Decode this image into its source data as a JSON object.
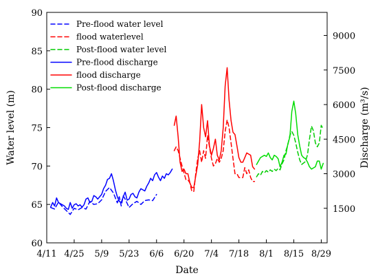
{
  "chart_data": {
    "type": "line",
    "xlabel": "Date",
    "ylabel_left": "Water level  (m)",
    "ylabel_right": "Discharge (m³/s)",
    "x_tick_labels": [
      "4/11",
      "4/25",
      "5/9",
      "5/23",
      "6/6",
      "6/20",
      "7/4",
      "7/18",
      "8/1",
      "8/15",
      "8/29"
    ],
    "x_tick_days": [
      0,
      14,
      28,
      42,
      56,
      70,
      84,
      98,
      112,
      126,
      140
    ],
    "x_range_days": [
      0,
      143
    ],
    "ylim_left": [
      60,
      90
    ],
    "yticks_left": [
      60,
      65,
      70,
      75,
      80,
      85,
      90
    ],
    "ylim_right": [
      0,
      10000
    ],
    "yticks_right": [
      1500,
      3000,
      4500,
      6000,
      7500,
      9000
    ],
    "legend_position": "top-left",
    "series": [
      {
        "name": "Pre-flood water level",
        "axis": "left",
        "style": "dashed",
        "color": "#0000ff",
        "x": [
          2,
          4,
          6,
          8,
          10,
          12,
          14,
          16,
          18,
          20,
          22,
          24,
          26,
          28,
          30,
          32,
          34,
          36,
          37,
          38,
          39,
          40,
          42,
          44,
          46,
          48,
          50,
          52,
          54,
          56
        ],
        "y": [
          64.6,
          64.4,
          65.3,
          64.7,
          64.2,
          63.7,
          64.5,
          64.3,
          64.6,
          64.4,
          65.4,
          65.0,
          65.1,
          65.6,
          66.7,
          67.2,
          66.5,
          65.2,
          66.0,
          64.8,
          66.1,
          65.7,
          64.6,
          65.1,
          65.4,
          65.0,
          65.5,
          65.6,
          65.5,
          66.3
        ]
      },
      {
        "name": "flood waterlevel",
        "axis": "left",
        "style": "dashed",
        "color": "#ff0000",
        "x": [
          65,
          66,
          67,
          69,
          71,
          72,
          73,
          74,
          75,
          76,
          77,
          78,
          79,
          80,
          81,
          82,
          83,
          84,
          85,
          86,
          87,
          88,
          89,
          90,
          91,
          92,
          93,
          94,
          95,
          96,
          97,
          98,
          99,
          100,
          101,
          102,
          103,
          104,
          105,
          106
        ],
        "y": [
          72,
          72.5,
          72,
          70,
          68.2,
          68.2,
          67.8,
          66.7,
          66.7,
          69,
          71,
          72,
          70.5,
          72,
          71,
          74,
          72.5,
          71,
          70,
          70.3,
          71,
          70.5,
          71,
          72,
          74.5,
          76,
          75,
          73,
          71,
          69,
          69,
          68.5,
          68.5,
          68.5,
          69.8,
          69,
          69.5,
          68.5,
          68,
          68
        ]
      },
      {
        "name": "Post-flood water level",
        "axis": "left",
        "style": "dashed",
        "color": "#00cc00",
        "x": [
          107,
          108,
          109,
          110,
          111,
          112,
          113,
          114,
          115,
          116,
          117,
          118,
          119,
          120,
          121,
          122,
          123,
          124,
          125,
          126,
          127,
          128,
          129,
          130,
          131,
          132,
          133,
          134,
          135,
          136,
          137,
          138,
          139,
          140,
          141
        ],
        "y": [
          68.6,
          69.0,
          68.8,
          69.3,
          69.1,
          69.4,
          69.2,
          69.5,
          69.3,
          69.6,
          69.4,
          69.7,
          69.5,
          70.3,
          70.8,
          72.0,
          72.8,
          74.0,
          74.5,
          74.0,
          73.0,
          71.8,
          70.8,
          70.2,
          70.4,
          70.6,
          71.5,
          73.5,
          75.2,
          74.6,
          73.0,
          72.5,
          73.0,
          75.3,
          74.8
        ]
      },
      {
        "name": "Pre-flood discharge",
        "axis": "right",
        "style": "solid",
        "color": "#0000ff",
        "x": [
          2,
          3,
          4,
          5,
          6,
          7,
          8,
          9,
          10,
          11,
          12,
          13,
          14,
          15,
          16,
          17,
          18,
          19,
          20,
          21,
          22,
          23,
          24,
          25,
          26,
          27,
          28,
          29,
          30,
          31,
          32,
          33,
          34,
          35,
          36,
          37,
          38,
          39,
          40,
          41,
          42,
          43,
          44,
          45,
          46,
          47,
          48,
          49,
          50,
          51,
          52,
          53,
          54,
          55,
          56,
          57,
          58,
          59,
          60,
          61,
          62,
          63,
          64
        ],
        "y": [
          1550,
          1750,
          1600,
          1950,
          1750,
          1700,
          1650,
          1600,
          1500,
          1450,
          1750,
          1500,
          1650,
          1700,
          1600,
          1650,
          1550,
          1650,
          1900,
          1950,
          1750,
          1800,
          2050,
          2000,
          1900,
          2000,
          2100,
          2350,
          2500,
          2750,
          2800,
          3000,
          2700,
          2300,
          2000,
          1800,
          1750,
          2000,
          2200,
          1850,
          1900,
          2100,
          2150,
          2000,
          1950,
          2200,
          2350,
          2300,
          2250,
          2450,
          2600,
          2800,
          2700,
          2950,
          3050,
          2850,
          2700,
          2900,
          2800,
          3000,
          2950,
          3050,
          3200
        ]
      },
      {
        "name": "flood discharge",
        "axis": "right",
        "style": "solid",
        "color": "#ff0000",
        "x": [
          65,
          66,
          67,
          68,
          69,
          70,
          71,
          72,
          73,
          74,
          75,
          76,
          77,
          78,
          79,
          80,
          81,
          82,
          83,
          84,
          85,
          86,
          87,
          88,
          89,
          90,
          91,
          92,
          93,
          94,
          95,
          96,
          97,
          98,
          99,
          100,
          101,
          102,
          103,
          104,
          105,
          106
        ],
        "y": [
          5100,
          5500,
          4600,
          3500,
          3100,
          3200,
          3000,
          3000,
          2600,
          2400,
          2400,
          2900,
          3400,
          4400,
          6000,
          5000,
          4600,
          5300,
          4200,
          3800,
          4100,
          4500,
          3800,
          3600,
          4000,
          5000,
          6800,
          7600,
          6200,
          5300,
          4800,
          4700,
          4200,
          3700,
          3500,
          3500,
          3700,
          3900,
          3850,
          3800,
          3300,
          3200
        ]
      },
      {
        "name": "Post-flood discharge",
        "axis": "right",
        "style": "solid",
        "color": "#00dd00",
        "x": [
          107,
          108,
          109,
          110,
          111,
          112,
          113,
          114,
          115,
          116,
          117,
          118,
          119,
          120,
          121,
          122,
          123,
          124,
          125,
          126,
          127,
          128,
          129,
          130,
          131,
          132,
          133,
          134,
          135,
          136,
          137,
          138,
          139,
          140,
          141
        ],
        "y": [
          3400,
          3550,
          3700,
          3750,
          3800,
          3750,
          3900,
          3700,
          3600,
          3800,
          3750,
          3650,
          3300,
          3500,
          3800,
          3850,
          4300,
          4600,
          5700,
          6150,
          5600,
          4700,
          4200,
          3800,
          3700,
          3650,
          3500,
          3300,
          3200,
          3250,
          3300,
          3550,
          3550,
          3200,
          3450
        ]
      }
    ]
  }
}
